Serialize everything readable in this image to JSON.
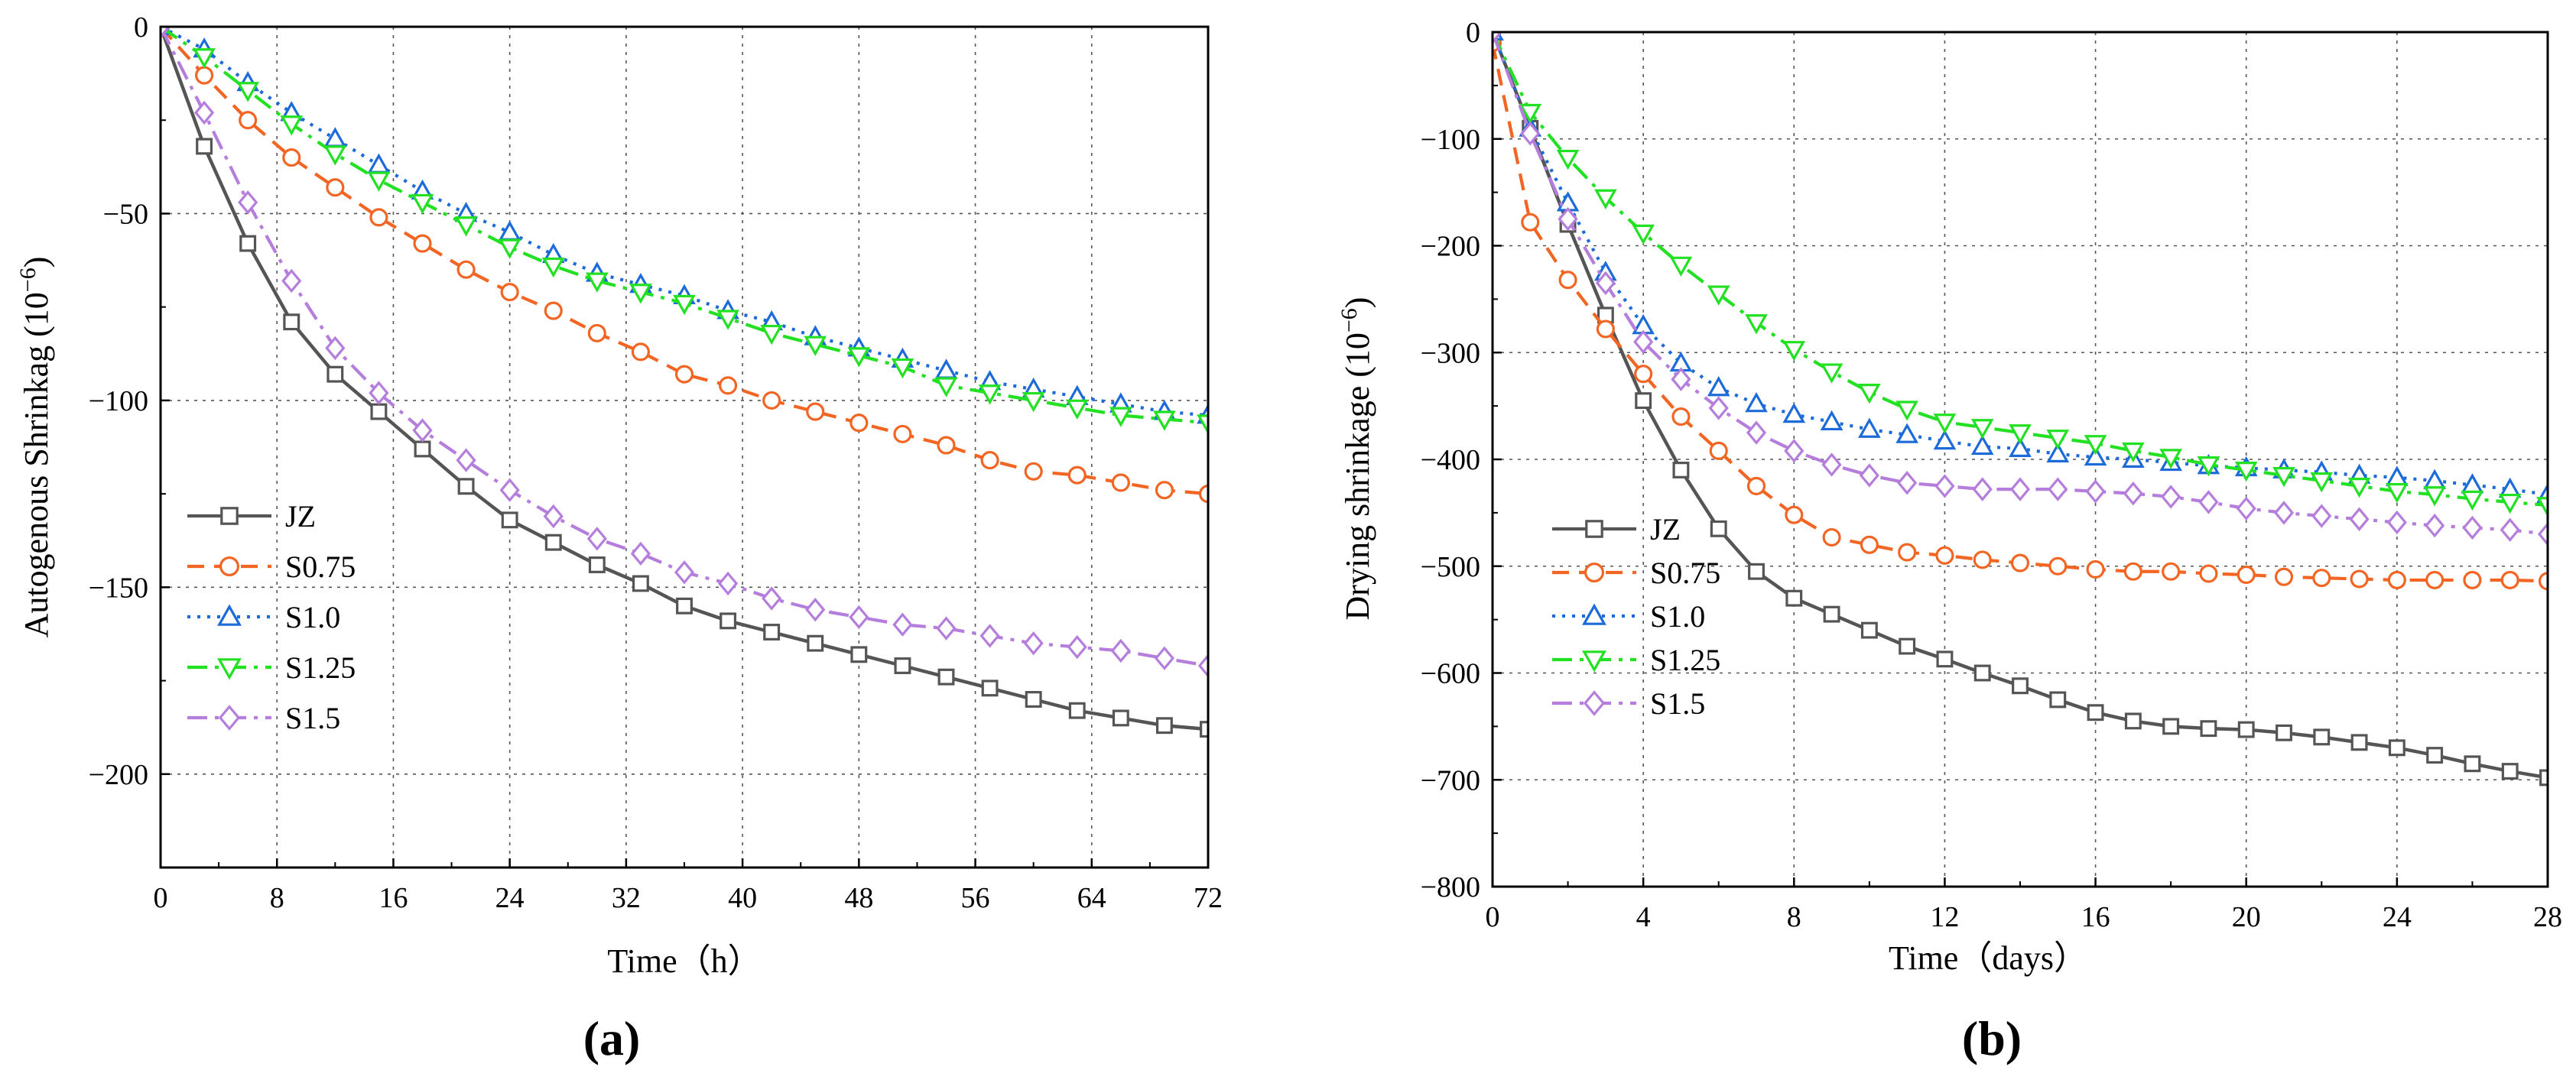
{
  "colors": {
    "JZ": "#555555",
    "S0.75": "#F26522",
    "S1.0": "#1C6BD9",
    "S1.25": "#22E022",
    "S1.5": "#B57EDC"
  },
  "chart_data": [
    {
      "type": "line",
      "panel_label": "(a)",
      "xlabel": "Time（h）",
      "ylabel_main": "Autogenous Shrinkag (10",
      "ylabel_sup": "−6",
      "ylabel_end": ")",
      "xlim": [
        0,
        72
      ],
      "ylim": [
        -225,
        0
      ],
      "xticks": [
        0,
        8,
        16,
        24,
        32,
        40,
        48,
        56,
        64,
        72
      ],
      "yticks": [
        0,
        -50,
        -100,
        -150,
        -200
      ],
      "grid": true,
      "legend_position": "lower-left",
      "series": [
        {
          "name": "JZ",
          "marker": "square",
          "dash": "solid",
          "x": [
            0,
            3,
            6,
            9,
            12,
            15,
            18,
            21,
            24,
            27,
            30,
            33,
            36,
            39,
            42,
            45,
            48,
            51,
            54,
            57,
            60,
            63,
            66,
            69,
            72
          ],
          "y": [
            0,
            -32,
            -58,
            -79,
            -93,
            -103,
            -113,
            -123,
            -132,
            -138,
            -144,
            -149,
            -155,
            -159,
            -162,
            -165,
            -168,
            -171,
            -174,
            -177,
            -180,
            -183,
            -185,
            -187,
            -188
          ]
        },
        {
          "name": "S0.75",
          "marker": "circle",
          "dash": "dash",
          "x": [
            0,
            3,
            6,
            9,
            12,
            15,
            18,
            21,
            24,
            27,
            30,
            33,
            36,
            39,
            42,
            45,
            48,
            51,
            54,
            57,
            60,
            63,
            66,
            69,
            72
          ],
          "y": [
            0,
            -13,
            -25,
            -35,
            -43,
            -51,
            -58,
            -65,
            -71,
            -76,
            -82,
            -87,
            -93,
            -96,
            -100,
            -103,
            -106,
            -109,
            -112,
            -116,
            -119,
            -120,
            -122,
            -124,
            -125
          ]
        },
        {
          "name": "S1.0",
          "marker": "triangle-up",
          "dash": "dot",
          "x": [
            0,
            3,
            6,
            9,
            12,
            15,
            18,
            21,
            24,
            27,
            30,
            33,
            36,
            39,
            42,
            45,
            48,
            51,
            54,
            57,
            60,
            63,
            66,
            69,
            72
          ],
          "y": [
            0,
            -6,
            -15,
            -23,
            -30,
            -37,
            -44,
            -50,
            -55,
            -61,
            -66,
            -69,
            -72,
            -76,
            -79,
            -83,
            -86,
            -89,
            -92,
            -95,
            -97,
            -99,
            -101,
            -103,
            -104
          ]
        },
        {
          "name": "S1.25",
          "marker": "triangle-down",
          "dash": "dashdot",
          "x": [
            0,
            3,
            6,
            9,
            12,
            15,
            18,
            21,
            24,
            27,
            30,
            33,
            36,
            39,
            42,
            45,
            48,
            51,
            54,
            57,
            60,
            63,
            66,
            69,
            72
          ],
          "y": [
            0,
            -8,
            -17,
            -26,
            -34,
            -41,
            -47,
            -53,
            -59,
            -64,
            -68,
            -71,
            -74,
            -78,
            -82,
            -85,
            -88,
            -91,
            -96,
            -98,
            -100,
            -102,
            -104,
            -105,
            -106
          ]
        },
        {
          "name": "S1.5",
          "marker": "diamond",
          "dash": "dashdot",
          "x": [
            0,
            3,
            6,
            9,
            12,
            15,
            18,
            21,
            24,
            27,
            30,
            33,
            36,
            39,
            42,
            45,
            48,
            51,
            54,
            57,
            60,
            63,
            66,
            69,
            72
          ],
          "y": [
            0,
            -23,
            -47,
            -68,
            -86,
            -98,
            -108,
            -116,
            -124,
            -131,
            -137,
            -141,
            -146,
            -149,
            -153,
            -156,
            -158,
            -160,
            -161,
            -163,
            -165,
            -166,
            -167,
            -169,
            -171
          ]
        }
      ]
    },
    {
      "type": "line",
      "panel_label": "(b)",
      "xlabel": "Time（days）",
      "ylabel_main": "Drying shrinkage (10",
      "ylabel_sup": "−6",
      "ylabel_end": ")",
      "xlim": [
        0,
        28
      ],
      "ylim": [
        -800,
        0
      ],
      "xticks": [
        0,
        4,
        8,
        12,
        16,
        20,
        24,
        28
      ],
      "yticks": [
        0,
        -100,
        -200,
        -300,
        -400,
        -500,
        -600,
        -700,
        -800
      ],
      "grid": true,
      "legend_position": "lower-left",
      "series": [
        {
          "name": "JZ",
          "marker": "square",
          "dash": "solid",
          "x": [
            0,
            1,
            2,
            3,
            4,
            5,
            6,
            7,
            8,
            9,
            10,
            11,
            12,
            13,
            14,
            15,
            16,
            17,
            18,
            19,
            20,
            21,
            22,
            23,
            24,
            25,
            26,
            27,
            28
          ],
          "y": [
            0,
            -90,
            -180,
            -265,
            -345,
            -410,
            -465,
            -505,
            -530,
            -545,
            -560,
            -575,
            -587,
            -600,
            -612,
            -625,
            -637,
            -645,
            -650,
            -652,
            -653,
            -656,
            -660,
            -665,
            -670,
            -677,
            -685,
            -692,
            -698
          ]
        },
        {
          "name": "S0.75",
          "marker": "circle",
          "dash": "dash",
          "x": [
            0,
            1,
            2,
            3,
            4,
            5,
            6,
            7,
            8,
            9,
            10,
            11,
            12,
            13,
            14,
            15,
            16,
            17,
            18,
            19,
            20,
            21,
            22,
            23,
            24,
            25,
            26,
            27,
            28
          ],
          "y": [
            -10,
            -178,
            -232,
            -278,
            -320,
            -360,
            -392,
            -425,
            -452,
            -473,
            -480,
            -487,
            -490,
            -494,
            -497,
            -500,
            -503,
            -505,
            -505,
            -507,
            -508,
            -510,
            -511,
            -512,
            -513,
            -513,
            -513,
            -513,
            -514
          ]
        },
        {
          "name": "S1.0",
          "marker": "triangle-up",
          "dash": "dot",
          "x": [
            0,
            1,
            2,
            3,
            4,
            5,
            6,
            7,
            8,
            9,
            10,
            11,
            12,
            13,
            14,
            15,
            16,
            17,
            18,
            19,
            20,
            21,
            22,
            23,
            24,
            25,
            26,
            27,
            28
          ],
          "y": [
            0,
            -90,
            -160,
            -225,
            -275,
            -310,
            -333,
            -348,
            -358,
            -365,
            -372,
            -377,
            -383,
            -388,
            -390,
            -395,
            -398,
            -400,
            -403,
            -406,
            -408,
            -410,
            -412,
            -415,
            -417,
            -420,
            -424,
            -428,
            -433
          ]
        },
        {
          "name": "S1.25",
          "marker": "triangle-down",
          "dash": "dashdot",
          "x": [
            0,
            1,
            2,
            3,
            4,
            5,
            6,
            7,
            8,
            9,
            10,
            11,
            12,
            13,
            14,
            15,
            16,
            17,
            18,
            19,
            20,
            21,
            22,
            23,
            24,
            25,
            26,
            27,
            28
          ],
          "y": [
            0,
            -75,
            -118,
            -155,
            -188,
            -218,
            -245,
            -272,
            -297,
            -318,
            -337,
            -353,
            -365,
            -370,
            -375,
            -380,
            -385,
            -392,
            -398,
            -405,
            -410,
            -415,
            -420,
            -425,
            -430,
            -433,
            -437,
            -440,
            -443
          ]
        },
        {
          "name": "S1.5",
          "marker": "diamond",
          "dash": "dashdot",
          "x": [
            0,
            1,
            2,
            3,
            4,
            5,
            6,
            7,
            8,
            9,
            10,
            11,
            12,
            13,
            14,
            15,
            16,
            17,
            18,
            19,
            20,
            21,
            22,
            23,
            24,
            25,
            26,
            27,
            28
          ],
          "y": [
            0,
            -95,
            -175,
            -235,
            -290,
            -325,
            -352,
            -375,
            -392,
            -405,
            -415,
            -422,
            -425,
            -428,
            -428,
            -428,
            -430,
            -432,
            -435,
            -440,
            -446,
            -450,
            -453,
            -456,
            -459,
            -462,
            -464,
            -466,
            -470
          ]
        }
      ]
    }
  ]
}
